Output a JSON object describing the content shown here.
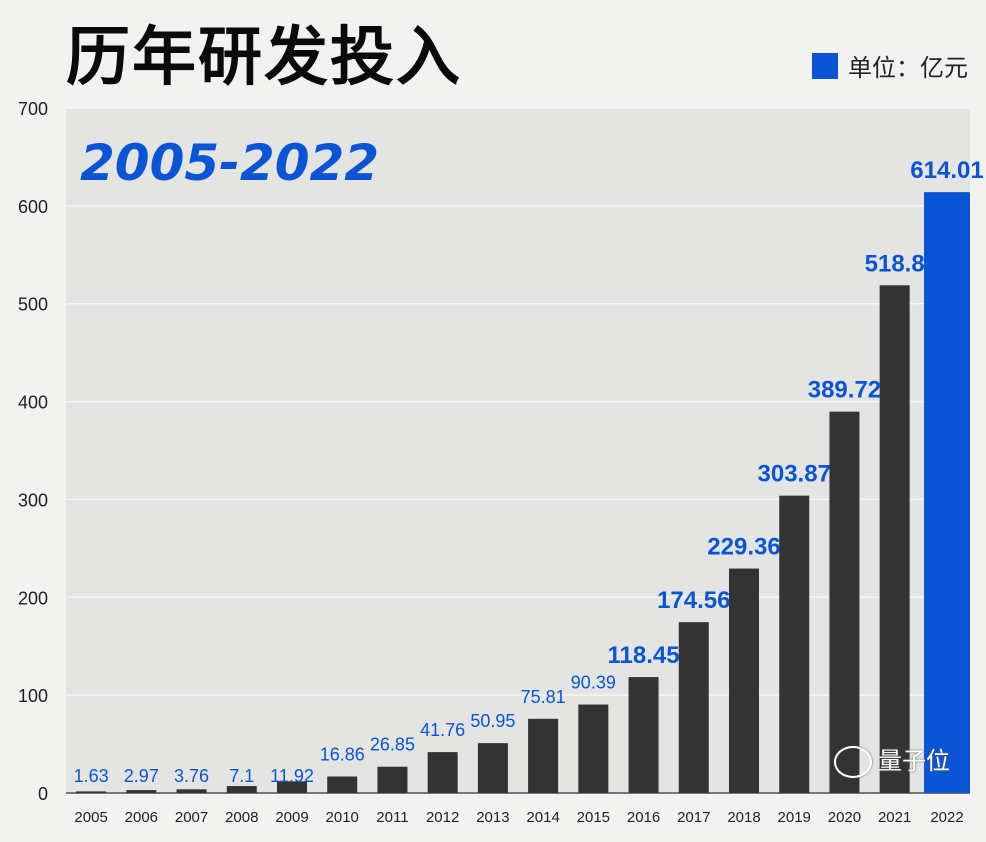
{
  "chart_data": {
    "type": "bar",
    "title": "历年研发投入",
    "subtitle": "2005-2022",
    "legend": {
      "label": "单位：亿元",
      "placement": "top-right"
    },
    "categories": [
      "2005",
      "2006",
      "2007",
      "2008",
      "2009",
      "2010",
      "2011",
      "2012",
      "2013",
      "2014",
      "2015",
      "2016",
      "2017",
      "2018",
      "2019",
      "2020",
      "2021",
      "2022"
    ],
    "values": [
      1.63,
      2.97,
      3.76,
      7.1,
      11.92,
      16.86,
      26.85,
      41.76,
      50.95,
      75.81,
      90.39,
      118.45,
      174.56,
      229.36,
      303.87,
      389.72,
      518.8,
      614.01
    ],
    "data_labels": [
      "1.63",
      "2.97",
      "3.76",
      "7.1",
      "11.92",
      "16.86",
      "26.85",
      "41.76",
      "50.95",
      "75.81",
      "90.39",
      "118.45",
      "174.56",
      "229.36",
      "303.87",
      "389.72",
      "518.8",
      "614.01"
    ],
    "ylim": [
      0,
      700
    ],
    "yticks": [
      "0",
      "100",
      "200",
      "300",
      "400",
      "500",
      "600",
      "700"
    ],
    "grid": true,
    "colors": {
      "bar": "#333333",
      "highlight": "#0a55d6",
      "label": "#0a55d6",
      "plot_bg": "#e4e4e3"
    }
  },
  "watermark": "量子位"
}
